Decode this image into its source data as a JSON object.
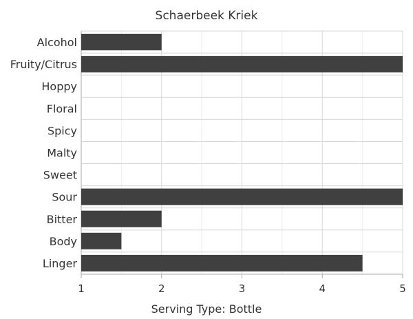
{
  "chart_data": {
    "type": "bar",
    "orientation": "horizontal",
    "title": "Schaerbeek Kriek",
    "xlabel": "Serving Type: Bottle",
    "ylabel": "",
    "categories": [
      "Alcohol",
      "Fruity/Citrus",
      "Hoppy",
      "Floral",
      "Spicy",
      "Malty",
      "Sweet",
      "Sour",
      "Bitter",
      "Body",
      "Linger"
    ],
    "values": [
      2,
      5,
      1,
      1,
      1,
      1,
      1,
      5,
      2,
      1.5,
      4.5
    ],
    "xlim": [
      1,
      5
    ],
    "xticks": [
      "1",
      "2",
      "3",
      "4",
      "5"
    ],
    "grid": true,
    "legend": "none",
    "colors": {
      "bar": "#404040",
      "grid": "#e0e0e0",
      "axis": "#aaaaaa",
      "text": "#333333"
    }
  }
}
